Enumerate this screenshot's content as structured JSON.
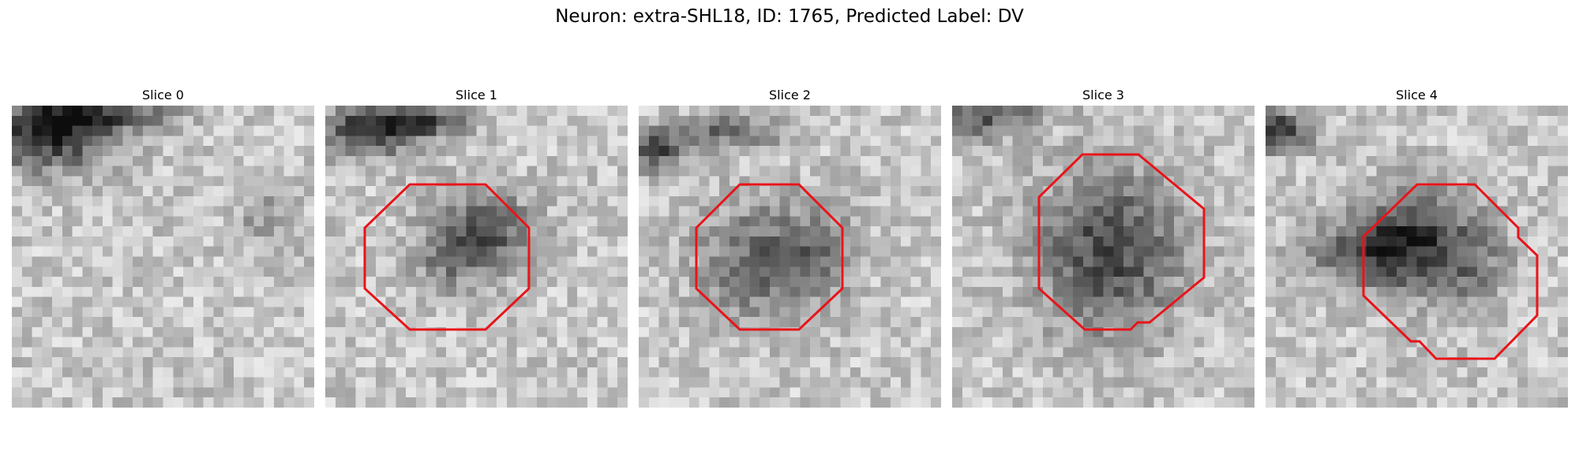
{
  "figure": {
    "title": "Neuron: extra-SHL18, ID: 1765, Predicted Label: DV"
  },
  "panels": [
    {
      "title": "Slice 0",
      "has_roi": false
    },
    {
      "title": "Slice 1",
      "has_roi": true
    },
    {
      "title": "Slice 2",
      "has_roi": true
    },
    {
      "title": "Slice 3",
      "has_roi": true
    },
    {
      "title": "Slice 4",
      "has_roi": true
    }
  ],
  "style": {
    "roi_color": "#e8141a",
    "colormap": "grayscale"
  }
}
